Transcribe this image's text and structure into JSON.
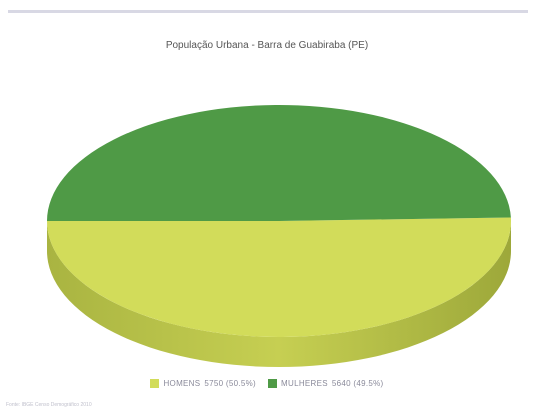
{
  "chart_data": {
    "type": "pie",
    "title": "População Urbana - Barra de Guabiraba (PE)",
    "slices": [
      {
        "label": "HOMENS",
        "value": 5750,
        "pct_label": "5750 (50.5%)",
        "color": "#d2dc5a"
      },
      {
        "label": "MULHERES",
        "value": 5640,
        "pct_label": "5640 (49.5%)",
        "color": "#4f9a46"
      }
    ],
    "legend_position": "bottom",
    "source": "Fonte: IBGE Censo Demográfico 2010"
  }
}
